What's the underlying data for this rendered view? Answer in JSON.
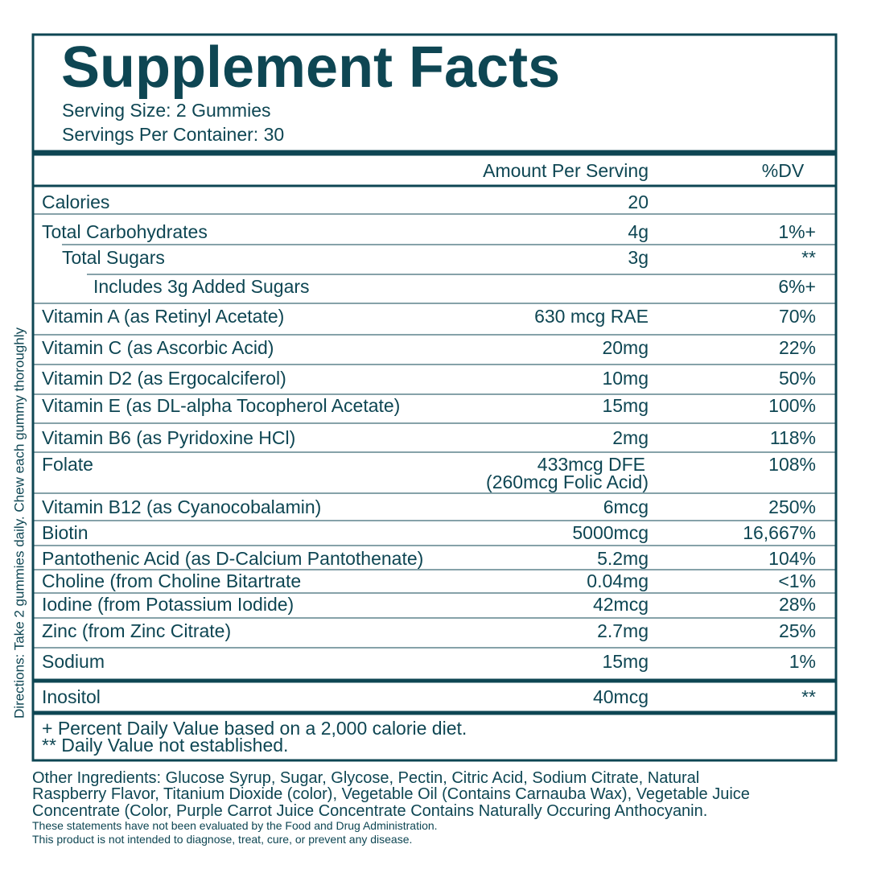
{
  "label": {
    "title": "Supplement Facts",
    "serving_size": "Serving Size: 2 Gummies",
    "servings_per_container": "Servings Per Container: 30",
    "header": {
      "amount": "Amount Per Serving",
      "dv": "%DV"
    },
    "rows": [
      {
        "name": "Calories",
        "amount": "20",
        "dv": ""
      },
      {
        "name": "Total Carbohydrates",
        "amount": "4g",
        "dv": "1%+"
      },
      {
        "name": "Total Sugars",
        "amount": "3g",
        "dv": "**"
      },
      {
        "name": "Includes 3g Added Sugars",
        "amount": "",
        "dv": "6%+"
      },
      {
        "name": "Vitamin A (as Retinyl Acetate)",
        "amount": "630 mcg RAE",
        "dv": "70%"
      },
      {
        "name": "Vitamin C (as Ascorbic Acid)",
        "amount": "20mg",
        "dv": "22%"
      },
      {
        "name": "Vitamin D2 (as Ergocalciferol)",
        "amount": "10mg",
        "dv": "50%"
      },
      {
        "name": "Vitamin E (as DL-alpha Tocopherol Acetate)",
        "amount": "15mg",
        "dv": "100%"
      },
      {
        "name": "Vitamin B6 (as Pyridoxine HCl)",
        "amount": "2mg",
        "dv": "118%"
      },
      {
        "name": "Folate",
        "amount": "433mcg DFE",
        "amount_note": "(260mcg Folic Acid)",
        "dv": "108%"
      },
      {
        "name": "Vitamin B12 (as Cyanocobalamin)",
        "amount": "6mcg",
        "dv": "250%"
      },
      {
        "name": "Biotin",
        "amount": "5000mcg",
        "dv": "16,667%"
      },
      {
        "name": "Pantothenic Acid (as D-Calcium Pantothenate)",
        "amount": "5.2mg",
        "dv": "104%"
      },
      {
        "name": "Choline (from Choline Bitartrate",
        "amount": "0.04mg",
        "dv": "<1%"
      },
      {
        "name": "Iodine (from Potassium Iodide)",
        "amount": "42mcg",
        "dv": "28%"
      },
      {
        "name": "Zinc (from Zinc Citrate)",
        "amount": "2.7mg",
        "dv": "25%"
      },
      {
        "name": "Sodium",
        "amount": "15mg",
        "dv": "1%"
      },
      {
        "name": "Inositol",
        "amount": "40mcg",
        "dv": "**"
      }
    ],
    "footnotes": [
      "+ Percent Daily Value based on a 2,000 calorie diet.",
      "** Daily Value not established."
    ],
    "directions": "Directions: Take 2 gummies daily. Chew each gummy thoroughly",
    "other_ingredients": [
      "Other Ingredients: Glucose Syrup, Sugar, Glycose, Pectin, Citric Acid, Sodium Citrate, Natural",
      "Raspberry Flavor, Titanium Dioxide (color), Vegetable Oil (Contains Carnauba Wax), Vegetable Juice",
      "Concentrate (Color, Purple Carrot Juice Concentrate Contains Naturally Occuring Anthocyanin."
    ],
    "disclaimer": [
      "These statements have not been evaluated by the Food and Drug Administration.",
      "This product is not intended to diagnose, treat, cure, or prevent any disease."
    ]
  }
}
